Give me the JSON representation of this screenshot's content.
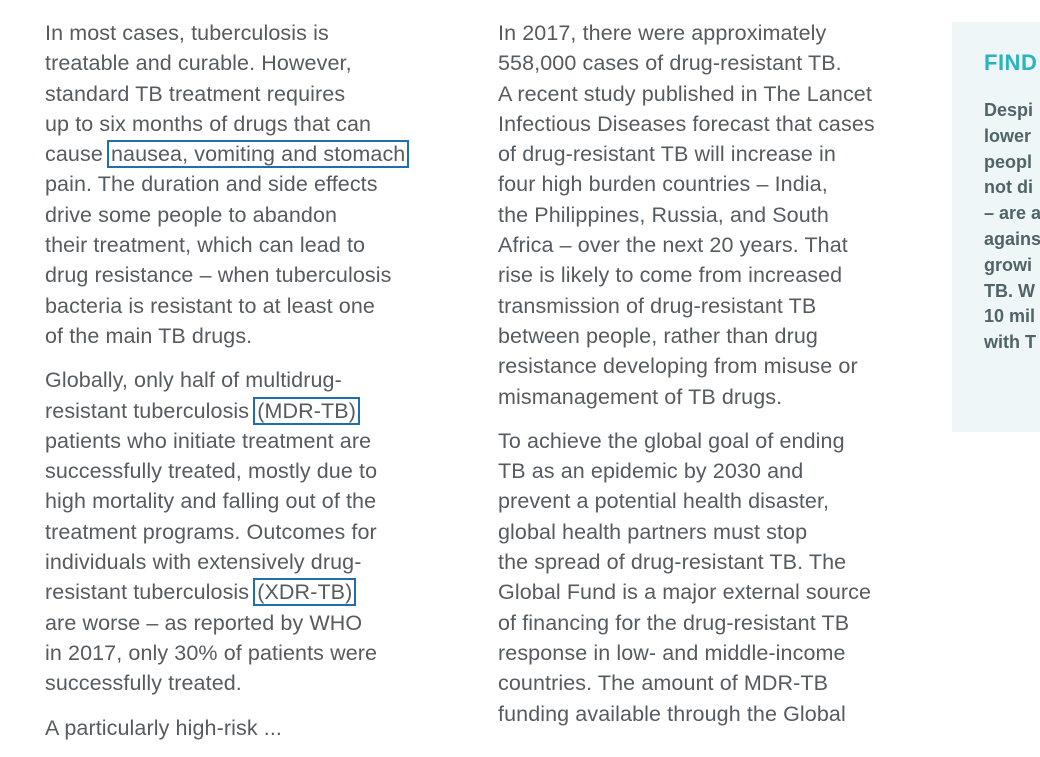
{
  "column_1": {
    "p1": [
      "In most cases, tuberculosis is",
      "treatable and curable. However,",
      "standard TB treatment requires",
      "up to six months of drugs that can",
      "cause ",
      "nausea, vomiting and stomach",
      "pain. The duration and side effects",
      "drive some people to abandon",
      "their treatment, which can lead to",
      "drug resistance – when tuberculosis",
      "bacteria is resistant to at least one",
      "of the main TB drugs."
    ],
    "p2": [
      "Globally, only half of multidrug-",
      "resistant tuberculosis ",
      "(MDR-TB)",
      "patients who initiate treatment are",
      "successfully treated, mostly due to",
      "high mortality and falling out of the",
      "treatment programs. Outcomes for",
      "individuals with extensively drug-",
      "resistant tuberculosis ",
      "(XDR-TB)",
      "are worse – as reported by WHO",
      "in 2017, only 30% of patients were",
      "successfully treated."
    ],
    "p3": [
      "A particularly high-risk ..."
    ]
  },
  "column_2": {
    "p1": [
      "In 2017, there were approximately",
      "558,000 cases of drug-resistant TB.",
      "A recent study published in The Lancet",
      "Infectious Diseases forecast that cases",
      "of drug-resistant TB will increase in",
      "four high burden countries – India,",
      "the Philippines, Russia, and South",
      "Africa – over the next 20 years. That",
      "rise is likely to come from increased",
      "transmission of drug-resistant TB",
      "between people, rather than drug",
      "resistance developing from misuse or",
      "mismanagement of TB drugs."
    ],
    "p2": [
      "To achieve the global goal of ending",
      "TB as an epidemic by 2030 and",
      "prevent a potential health disaster,",
      "global health partners must stop",
      "the spread of drug-resistant TB. The",
      "Global Fund is a major external source",
      "of financing for the drug-resistant TB",
      "response in low- and middle-income",
      "countries. The amount of MDR-TB",
      "funding available through the Global"
    ]
  },
  "sidebar": {
    "title": "FIND",
    "lines": [
      "Despi",
      "lower",
      "peopl",
      "not di",
      "– are a",
      "agains",
      "growi",
      "TB. W",
      "10 mil",
      "with T"
    ]
  },
  "colors": {
    "body_text": "#555b60",
    "highlight_box": "#1f6fb0",
    "sidebar_bg": "#eef6f7",
    "sidebar_title": "#2bb3c0"
  }
}
